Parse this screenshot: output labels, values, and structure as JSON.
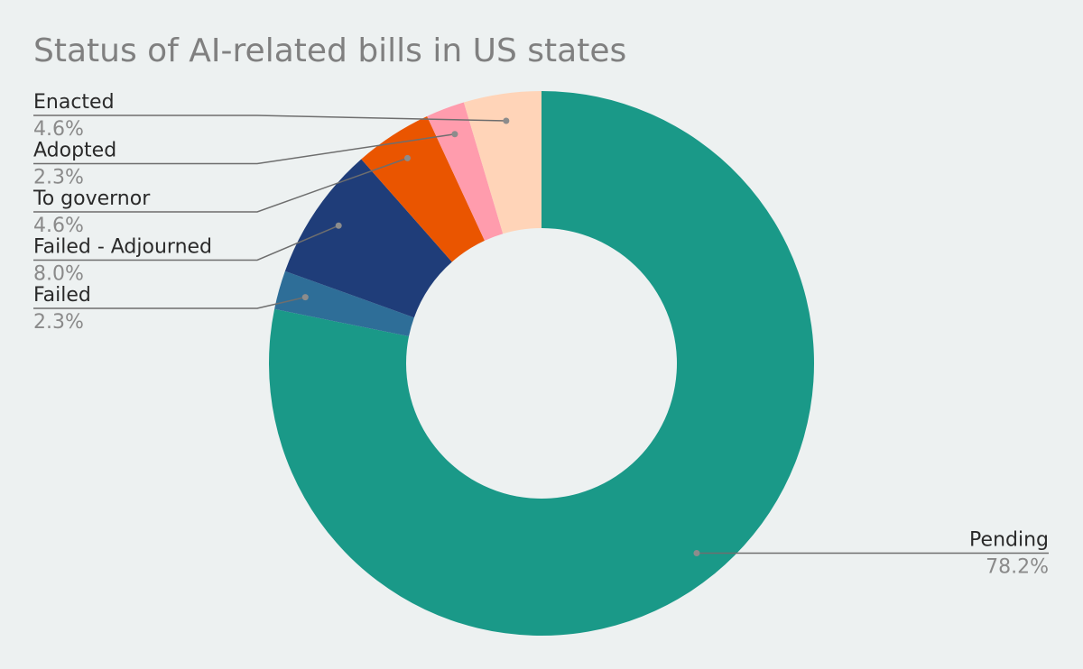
{
  "chart_data": {
    "type": "pie",
    "variant": "donut",
    "title": "Status of AI-related bills in US states",
    "legend": "none",
    "slices": [
      {
        "label": "Pending",
        "percent_label": "78.2%",
        "value": 78.2,
        "color": "#1a9988"
      },
      {
        "label": "Failed",
        "percent_label": "2.3%",
        "value": 2.3,
        "color": "#2e6e98"
      },
      {
        "label": "Failed - Adjourned",
        "percent_label": "8.0%",
        "value": 8.0,
        "color": "#1f3d79"
      },
      {
        "label": "To governor",
        "percent_label": "4.6%",
        "value": 4.6,
        "color": "#ea5500"
      },
      {
        "label": "Adopted",
        "percent_label": "2.3%",
        "value": 2.3,
        "color": "#ff9cad"
      },
      {
        "label": "Enacted",
        "percent_label": "4.6%",
        "value": 4.6,
        "color": "#ffd4b8"
      }
    ]
  }
}
